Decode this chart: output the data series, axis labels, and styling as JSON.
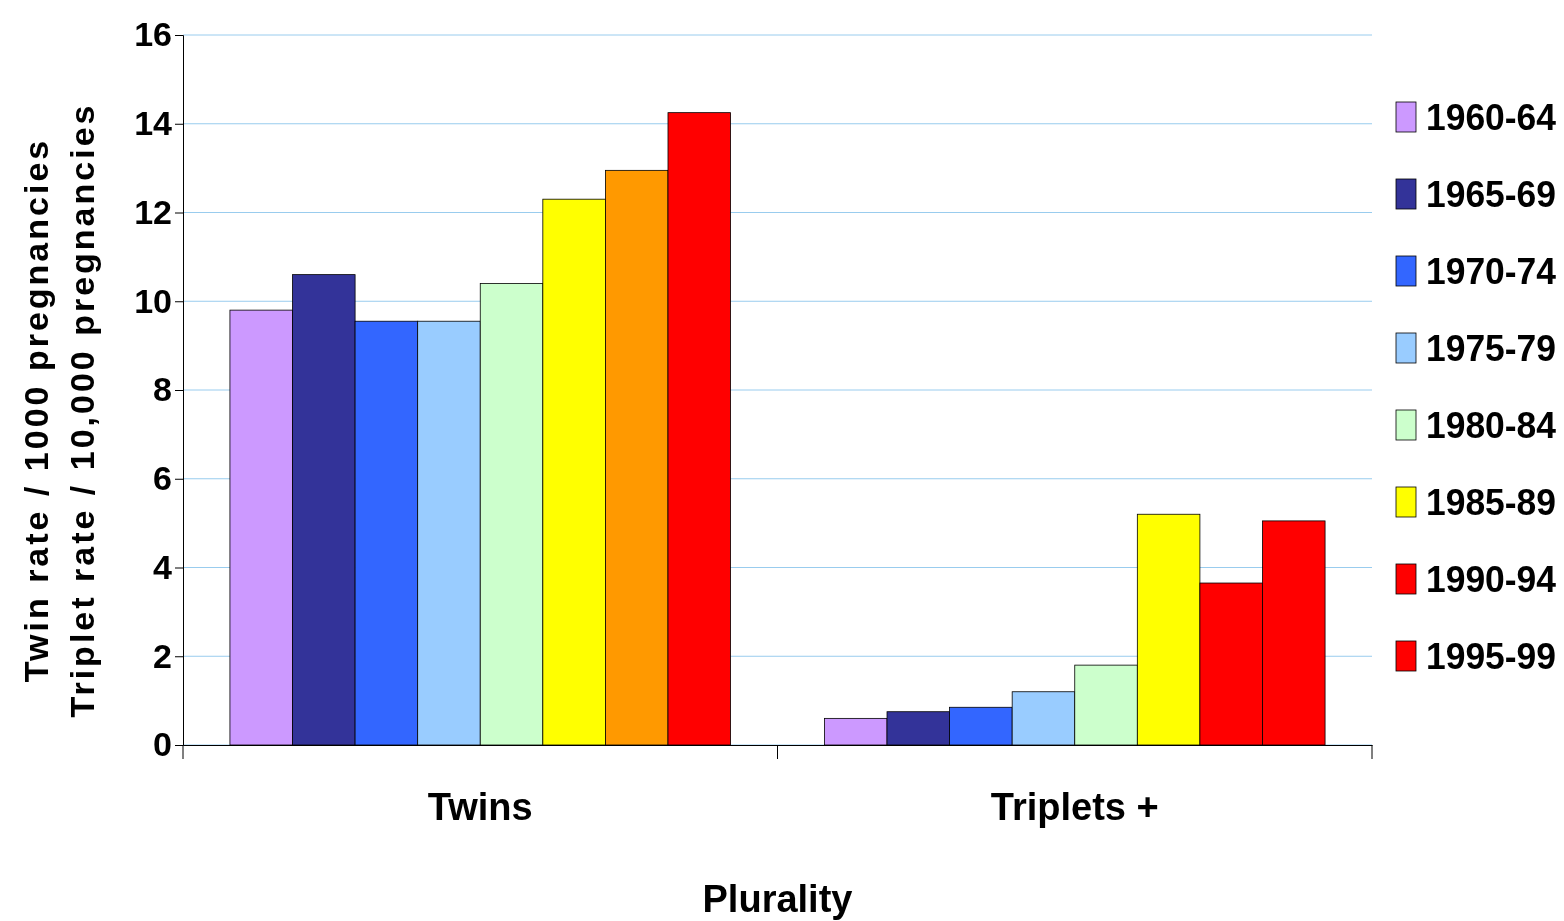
{
  "chart_data": {
    "type": "bar",
    "xlabel": "Plurality",
    "ylabel": "Twin rate / 1000 pregnancies\nTriplet rate / 10,000 pregnancies",
    "categories": [
      "Twins",
      "Triplets +"
    ],
    "ylim": [
      0,
      16
    ],
    "yticks": [
      0,
      2,
      4,
      6,
      8,
      10,
      12,
      14,
      16
    ],
    "grid": "y",
    "legend": "right",
    "series": [
      {
        "name": "1960-64",
        "color": "#cc99ff",
        "values": [
          9.8,
          0.6
        ]
      },
      {
        "name": "1965-69",
        "color": "#333399",
        "values": [
          10.6,
          0.75
        ]
      },
      {
        "name": "1970-74",
        "color": "#3366ff",
        "values": [
          9.55,
          0.85
        ]
      },
      {
        "name": "1975-79",
        "color": "#99ccff",
        "values": [
          9.55,
          1.2
        ]
      },
      {
        "name": "1980-84",
        "color": "#ccffcc",
        "values": [
          10.4,
          1.8
        ]
      },
      {
        "name": "1985-89",
        "color": "#ffff00",
        "values": [
          12.3,
          5.2
        ]
      },
      {
        "name": "1990-94",
        "color": "#ff0000",
        "colors": [
          "#ff9900",
          "#ff0000"
        ],
        "values": [
          12.95,
          3.65
        ]
      },
      {
        "name": "1995-99",
        "color": "#ff0000",
        "values": [
          14.25,
          5.05
        ]
      }
    ]
  }
}
